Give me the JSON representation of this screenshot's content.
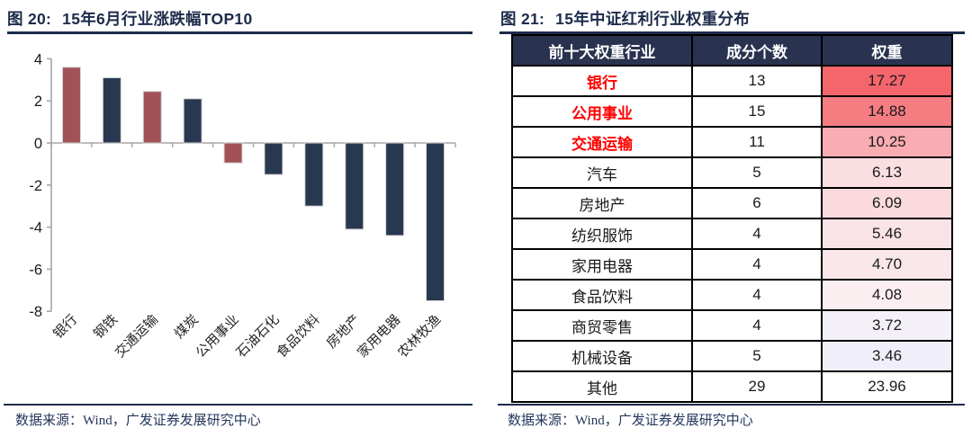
{
  "theme": {
    "title_color": "#1c2b4a",
    "rule_color": "#1c2b4a",
    "source_color": "#24365c",
    "axis_color": "#a6a6a6",
    "tick_label_color": "#1a1a1a",
    "category_label_color": "#262626",
    "bar_outline_color": "#d6d6d6"
  },
  "chart_data": [
    {
      "type": "bar",
      "figure_label": "图 20:",
      "title": "15年6月行业涨跌幅TOP10",
      "categories": [
        "银行",
        "钢铁",
        "交通运输",
        "煤炭",
        "公用事业",
        "石油石化",
        "食品饮料",
        "房地产",
        "家用电器",
        "农林牧渔"
      ],
      "values": [
        3.6,
        3.1,
        2.45,
        2.1,
        -0.95,
        -1.5,
        -3.0,
        -4.1,
        -4.4,
        -7.5
      ],
      "bar_color_keys": [
        "red",
        "navy",
        "red",
        "navy",
        "red",
        "navy",
        "navy",
        "navy",
        "navy",
        "navy"
      ],
      "palette": {
        "red": "#a25257",
        "navy": "#283850"
      },
      "ylim": [
        -8,
        4
      ],
      "yticks": [
        4,
        2,
        0,
        -2,
        -4,
        -6,
        -8
      ],
      "grid": false,
      "legend": null,
      "source": "数据来源：Wind，广发证券发展研究中心"
    },
    {
      "type": "table",
      "figure_label": "图 21:",
      "title": "15年中证红利行业权重分布",
      "headers": [
        "前十大权重行业",
        "成分个数",
        "权重"
      ],
      "header_bg": "#293350",
      "header_text_color": "#ffffff",
      "highlight_text_color": "#fe0000",
      "rows": [
        {
          "industry": "银行",
          "count": "13",
          "weight": "17.27",
          "highlight": true,
          "weight_bg": "#f4656c"
        },
        {
          "industry": "公用事业",
          "count": "15",
          "weight": "14.88",
          "highlight": true,
          "weight_bg": "#f57d82"
        },
        {
          "industry": "交通运输",
          "count": "11",
          "weight": "10.25",
          "highlight": true,
          "weight_bg": "#f9acb1"
        },
        {
          "industry": "汽车",
          "count": "5",
          "weight": "6.13",
          "highlight": false,
          "weight_bg": "#fadee2"
        },
        {
          "industry": "房地产",
          "count": "6",
          "weight": "6.09",
          "highlight": false,
          "weight_bg": "#fadadd"
        },
        {
          "industry": "纺织服饰",
          "count": "4",
          "weight": "5.46",
          "highlight": false,
          "weight_bg": "#fae3e7"
        },
        {
          "industry": "家用电器",
          "count": "4",
          "weight": "4.70",
          "highlight": false,
          "weight_bg": "#f9e7ea"
        },
        {
          "industry": "食品饮料",
          "count": "4",
          "weight": "4.08",
          "highlight": false,
          "weight_bg": "#faeef1"
        },
        {
          "industry": "商贸零售",
          "count": "4",
          "weight": "3.72",
          "highlight": false,
          "weight_bg": "#f4f0f8"
        },
        {
          "industry": "机械设备",
          "count": "5",
          "weight": "3.46",
          "highlight": false,
          "weight_bg": "#f0eff9"
        },
        {
          "industry": "其他",
          "count": "29",
          "weight": "23.96",
          "highlight": false,
          "weight_bg": "#ffffff"
        }
      ],
      "source": "数据来源：Wind，广发证券发展研究中心"
    }
  ]
}
